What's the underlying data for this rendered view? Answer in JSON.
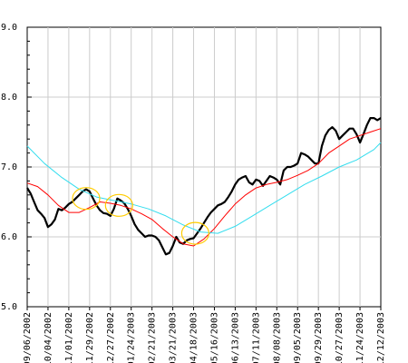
{
  "chart_data": {
    "type": "line",
    "title": "",
    "xlabel": "",
    "ylabel": "",
    "ylim": [
      5.0,
      9.0
    ],
    "y_ticks": [
      "5.0",
      "6.0",
      "7.0",
      "8.0",
      "9.0"
    ],
    "x_ticks": [
      "09/06/2002",
      "10/04/2002",
      "11/01/2002",
      "11/29/2002",
      "12/27/2002",
      "01/24/2003",
      "02/21/2003",
      "03/21/2003",
      "04/18/2003",
      "05/16/2003",
      "06/13/2003",
      "07/11/2003",
      "08/08/2003",
      "09/05/2003",
      "09/29/2003",
      "10/27/2003",
      "11/24/2003",
      "12/12/2003"
    ],
    "grid": true,
    "legend": "none",
    "series": [
      {
        "color": "#000000",
        "values": [
          [
            0,
            6.7
          ],
          [
            1,
            6.62
          ],
          [
            2,
            6.5
          ],
          [
            3,
            6.38
          ],
          [
            4,
            6.33
          ],
          [
            5,
            6.27
          ],
          [
            6,
            6.14
          ],
          [
            7,
            6.18
          ],
          [
            8,
            6.25
          ],
          [
            9,
            6.4
          ],
          [
            10,
            6.38
          ],
          [
            11,
            6.42
          ],
          [
            12,
            6.47
          ],
          [
            13,
            6.5
          ],
          [
            14,
            6.55
          ],
          [
            15,
            6.6
          ],
          [
            16,
            6.65
          ],
          [
            17,
            6.68
          ],
          [
            18,
            6.65
          ],
          [
            19,
            6.55
          ],
          [
            20,
            6.45
          ],
          [
            21,
            6.38
          ],
          [
            22,
            6.34
          ],
          [
            23,
            6.33
          ],
          [
            24,
            6.3
          ],
          [
            25,
            6.4
          ],
          [
            26,
            6.55
          ],
          [
            27,
            6.52
          ],
          [
            28,
            6.48
          ],
          [
            29,
            6.4
          ],
          [
            30,
            6.3
          ],
          [
            31,
            6.18
          ],
          [
            32,
            6.1
          ],
          [
            33,
            6.05
          ],
          [
            34,
            6.0
          ],
          [
            35,
            6.02
          ],
          [
            36,
            6.02
          ],
          [
            37,
            6.0
          ],
          [
            38,
            5.95
          ],
          [
            39,
            5.85
          ],
          [
            40,
            5.75
          ],
          [
            41,
            5.77
          ],
          [
            42,
            5.87
          ],
          [
            43,
            6.0
          ],
          [
            44,
            5.92
          ],
          [
            45,
            5.9
          ],
          [
            46,
            5.95
          ],
          [
            47,
            5.97
          ],
          [
            48,
            5.98
          ],
          [
            49,
            6.05
          ],
          [
            50,
            6.12
          ],
          [
            51,
            6.2
          ],
          [
            52,
            6.28
          ],
          [
            53,
            6.35
          ],
          [
            54,
            6.4
          ],
          [
            55,
            6.45
          ],
          [
            56,
            6.47
          ],
          [
            57,
            6.5
          ],
          [
            58,
            6.57
          ],
          [
            59,
            6.65
          ],
          [
            60,
            6.75
          ],
          [
            61,
            6.82
          ],
          [
            62,
            6.85
          ],
          [
            63,
            6.87
          ],
          [
            64,
            6.78
          ],
          [
            65,
            6.75
          ],
          [
            66,
            6.82
          ],
          [
            67,
            6.8
          ],
          [
            68,
            6.73
          ],
          [
            69,
            6.8
          ],
          [
            70,
            6.87
          ],
          [
            71,
            6.85
          ],
          [
            72,
            6.82
          ],
          [
            73,
            6.75
          ],
          [
            74,
            6.95
          ],
          [
            75,
            7.0
          ],
          [
            76,
            7.0
          ],
          [
            77,
            7.02
          ],
          [
            78,
            7.05
          ],
          [
            79,
            7.2
          ],
          [
            80,
            7.18
          ],
          [
            81,
            7.15
          ],
          [
            82,
            7.1
          ],
          [
            83,
            7.05
          ],
          [
            84,
            7.05
          ],
          [
            85,
            7.3
          ],
          [
            86,
            7.45
          ],
          [
            87,
            7.53
          ],
          [
            88,
            7.57
          ],
          [
            89,
            7.52
          ],
          [
            90,
            7.4
          ],
          [
            91,
            7.45
          ],
          [
            92,
            7.5
          ],
          [
            93,
            7.55
          ],
          [
            94,
            7.55
          ],
          [
            95,
            7.47
          ],
          [
            96,
            7.35
          ],
          [
            97,
            7.47
          ],
          [
            98,
            7.6
          ],
          [
            99,
            7.7
          ],
          [
            100,
            7.7
          ],
          [
            101,
            7.67
          ],
          [
            102,
            7.7
          ]
        ]
      },
      {
        "color": "#ff0000",
        "values": [
          [
            0,
            6.77
          ],
          [
            3,
            6.72
          ],
          [
            6,
            6.6
          ],
          [
            9,
            6.45
          ],
          [
            12,
            6.35
          ],
          [
            15,
            6.35
          ],
          [
            18,
            6.42
          ],
          [
            21,
            6.5
          ],
          [
            24,
            6.48
          ],
          [
            27,
            6.45
          ],
          [
            30,
            6.4
          ],
          [
            33,
            6.33
          ],
          [
            36,
            6.25
          ],
          [
            39,
            6.12
          ],
          [
            42,
            6.0
          ],
          [
            45,
            5.9
          ],
          [
            48,
            5.87
          ],
          [
            51,
            5.97
          ],
          [
            54,
            6.12
          ],
          [
            57,
            6.3
          ],
          [
            60,
            6.47
          ],
          [
            63,
            6.6
          ],
          [
            66,
            6.7
          ],
          [
            69,
            6.75
          ],
          [
            72,
            6.78
          ],
          [
            75,
            6.82
          ],
          [
            78,
            6.88
          ],
          [
            81,
            6.95
          ],
          [
            84,
            7.05
          ],
          [
            87,
            7.2
          ],
          [
            90,
            7.3
          ],
          [
            93,
            7.4
          ],
          [
            96,
            7.45
          ],
          [
            99,
            7.5
          ],
          [
            102,
            7.55
          ]
        ]
      },
      {
        "color": "#33ddee",
        "values": [
          [
            0,
            7.3
          ],
          [
            5,
            7.05
          ],
          [
            10,
            6.85
          ],
          [
            15,
            6.68
          ],
          [
            20,
            6.57
          ],
          [
            25,
            6.52
          ],
          [
            30,
            6.47
          ],
          [
            35,
            6.4
          ],
          [
            40,
            6.3
          ],
          [
            45,
            6.17
          ],
          [
            50,
            6.07
          ],
          [
            55,
            6.05
          ],
          [
            60,
            6.15
          ],
          [
            65,
            6.3
          ],
          [
            70,
            6.45
          ],
          [
            75,
            6.6
          ],
          [
            80,
            6.75
          ],
          [
            85,
            6.87
          ],
          [
            90,
            7.0
          ],
          [
            95,
            7.1
          ],
          [
            100,
            7.25
          ],
          [
            102,
            7.35
          ]
        ]
      }
    ],
    "annotations": [
      {
        "shape": "ellipse",
        "x": 17,
        "y": 6.55,
        "color": "#ffcc00"
      },
      {
        "shape": "ellipse",
        "x": 26.5,
        "y": 6.45,
        "color": "#ffcc00"
      },
      {
        "shape": "ellipse",
        "x": 48.5,
        "y": 6.05,
        "color": "#ffcc00"
      }
    ]
  }
}
